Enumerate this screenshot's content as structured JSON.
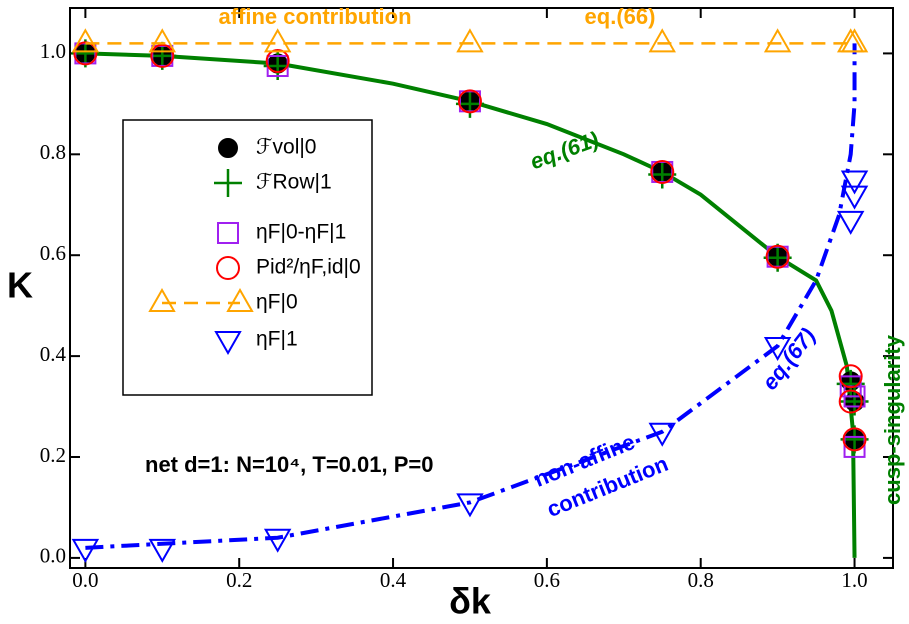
{
  "chart_data": {
    "type": "scatter",
    "xlabel": "δk",
    "ylabel": "K",
    "xlim": [
      -0.02,
      1.05
    ],
    "ylim": [
      -0.02,
      1.09
    ],
    "xticks": [
      {
        "value": 0,
        "label": "0.0"
      },
      {
        "value": 0.2,
        "label": "0.2"
      },
      {
        "value": 0.4,
        "label": "0.4"
      },
      {
        "value": 0.6,
        "label": "0.6"
      },
      {
        "value": 0.8,
        "label": "0.8"
      },
      {
        "value": 1,
        "label": "1.0"
      }
    ],
    "yticks": [
      {
        "value": 0,
        "label": "0.0"
      },
      {
        "value": 0.2,
        "label": "0.2"
      },
      {
        "value": 0.4,
        "label": "0.4"
      },
      {
        "value": 0.6,
        "label": "0.6"
      },
      {
        "value": 0.8,
        "label": "0.8"
      },
      {
        "value": 1,
        "label": "1.0"
      }
    ],
    "curves": [
      {
        "color": "#008000",
        "dash": "solid",
        "x": [
          0,
          0.1,
          0.25,
          0.4,
          0.5,
          0.6,
          0.7,
          0.75,
          0.8,
          0.9,
          0.95,
          0.97,
          0.99,
          0.998,
          1.0
        ],
        "values": [
          1.0,
          0.995,
          0.98,
          0.94,
          0.905,
          0.86,
          0.8,
          0.765,
          0.72,
          0.597,
          0.55,
          0.49,
          0.38,
          0.25,
          0.0
        ]
      },
      {
        "color": "#0000ff",
        "dash": "dashdot",
        "x": [
          0,
          0.25,
          0.5,
          0.75,
          0.9,
          0.95,
          0.98,
          0.995,
          1.0,
          1.0
        ],
        "values": [
          0.02,
          0.04,
          0.11,
          0.25,
          0.42,
          0.55,
          0.68,
          0.8,
          0.9,
          1.02
        ]
      }
    ],
    "series": [
      {
        "name": "ℱvol|0",
        "color": "#000000",
        "marker": "dot",
        "x": [
          0,
          0.1,
          0.25,
          0.5,
          0.75,
          0.9,
          0.995,
          1.0,
          1.0
        ],
        "values": [
          1.0,
          0.995,
          0.98,
          0.905,
          0.765,
          0.597,
          0.35,
          0.31,
          0.235
        ]
      },
      {
        "name": "ℱRow|1",
        "color": "#008000",
        "marker": "plus",
        "x": [
          0,
          0.1,
          0.25,
          0.5,
          0.75,
          0.9,
          0.995,
          1.0,
          1.0
        ],
        "values": [
          1.0,
          0.995,
          0.975,
          0.9,
          0.76,
          0.595,
          0.345,
          0.31,
          0.235
        ]
      },
      {
        "name": "ηF|0-ηF|1",
        "color": "#a020f0",
        "marker": "square",
        "x": [
          0,
          0.1,
          0.25,
          0.5,
          0.75,
          0.9,
          0.995,
          1.0,
          1.0
        ],
        "values": [
          1.0,
          0.995,
          0.975,
          0.905,
          0.765,
          0.597,
          0.34,
          0.32,
          0.22
        ]
      },
      {
        "name": "Pid²/ηF,id|0",
        "color": "#ff0000",
        "marker": "circle",
        "x": [
          0,
          0.1,
          0.25,
          0.5,
          0.75,
          0.9,
          0.995,
          0.995,
          1.0
        ],
        "values": [
          1.0,
          0.995,
          0.985,
          0.905,
          0.765,
          0.597,
          0.36,
          0.31,
          0.235
        ]
      },
      {
        "name": "ηF|0",
        "color": "#ffa500",
        "marker": "tri-up",
        "line": "dashed",
        "x": [
          0,
          0.1,
          0.25,
          0.5,
          0.75,
          0.9,
          0.995,
          1.0
        ],
        "values": [
          1.02,
          1.02,
          1.02,
          1.02,
          1.02,
          1.02,
          1.02,
          1.02
        ]
      },
      {
        "name": "ηF|1",
        "color": "#0000ff",
        "marker": "tri-down",
        "x": [
          0,
          0.1,
          0.25,
          0.5,
          0.75,
          0.9,
          0.995,
          1.0,
          1.0
        ],
        "values": [
          0.02,
          0.02,
          0.04,
          0.11,
          0.25,
          0.42,
          0.67,
          0.72,
          0.75
        ]
      }
    ],
    "annotations": [
      "affine contribution",
      "eq.(66)",
      "eq.(61)",
      "eq.(67)",
      "non-affine",
      "contribution",
      "cusp-singularity",
      "net d=1: N=10⁴, T=0.01, P=0"
    ]
  }
}
